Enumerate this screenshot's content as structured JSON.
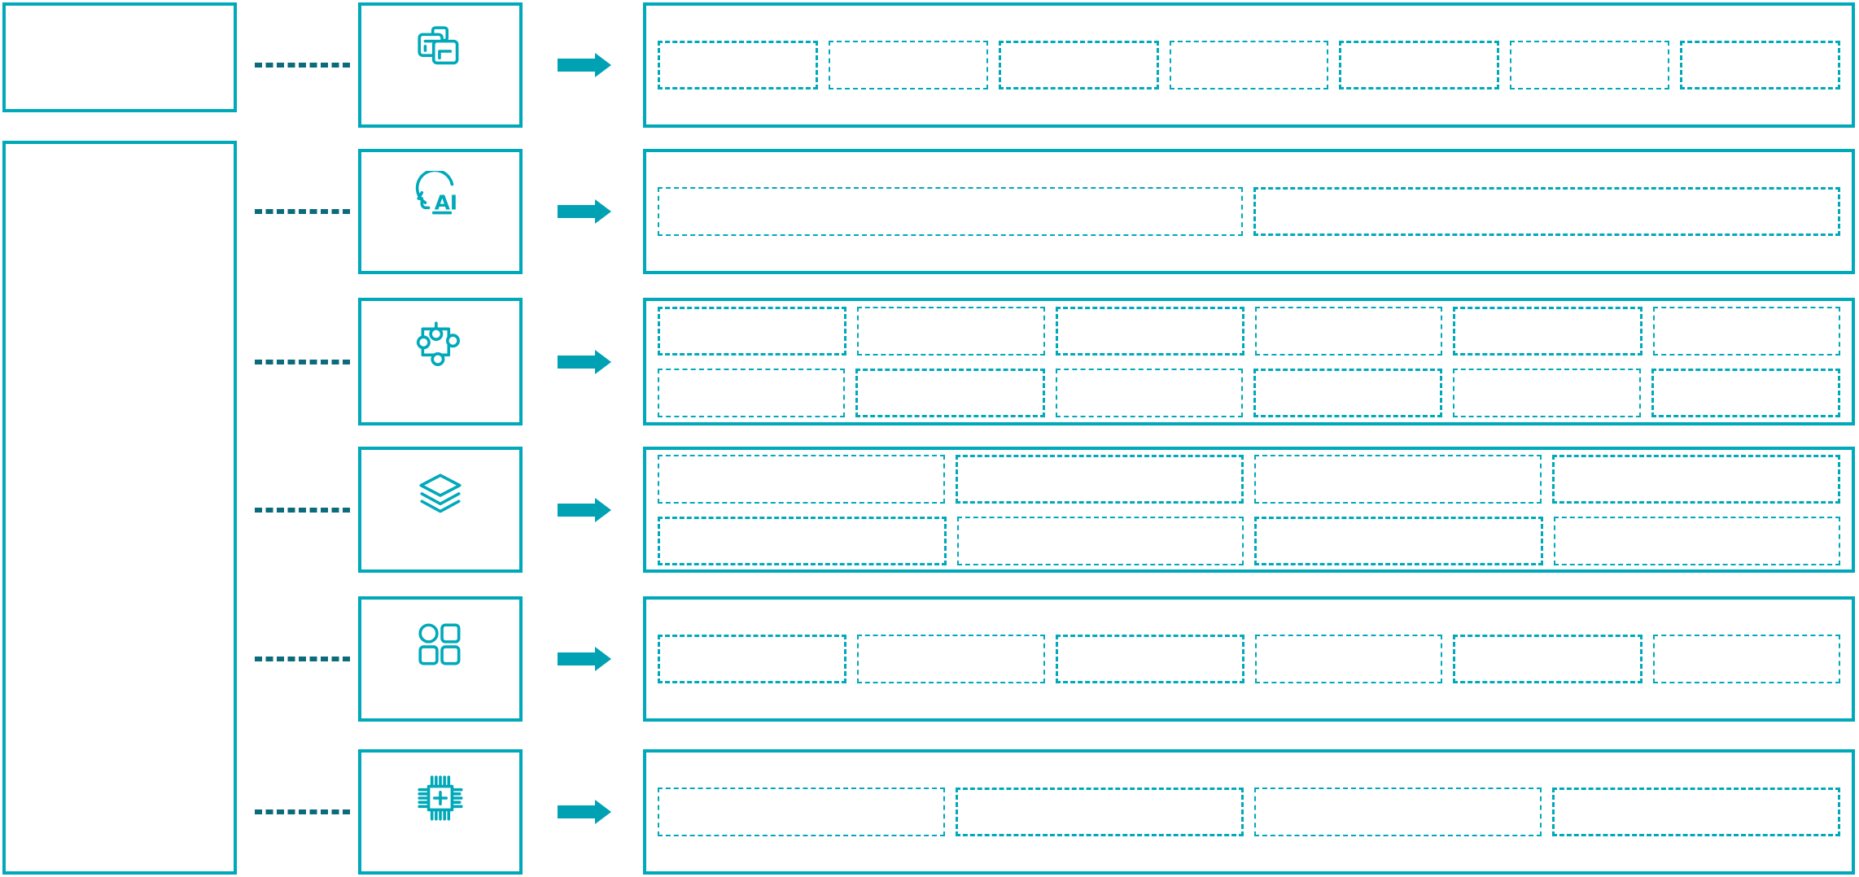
{
  "palette": {
    "box_border": "#00a9ba",
    "connector_dash": "#0b6b7c",
    "arrow": "#00a1b3",
    "background": "#ffffff"
  },
  "left_panel": {
    "top_box_label": "",
    "main_box_label": ""
  },
  "icons": {
    "ai_label": "AI"
  },
  "rows": [
    {
      "icon": "clone-icon",
      "placeholders": {
        "rows": 1,
        "cols": 7
      }
    },
    {
      "icon": "ai-head-icon",
      "placeholders": {
        "rows": 1,
        "cols": 2
      }
    },
    {
      "icon": "puzzle-icon",
      "placeholders": {
        "rows": 2,
        "cols": 6
      }
    },
    {
      "icon": "layers-icon",
      "placeholders": {
        "rows": 2,
        "cols": 4
      }
    },
    {
      "icon": "apps-grid-icon",
      "placeholders": {
        "rows": 1,
        "cols": 6
      }
    },
    {
      "icon": "chip-plus-icon",
      "placeholders": {
        "rows": 1,
        "cols": 4
      }
    }
  ]
}
